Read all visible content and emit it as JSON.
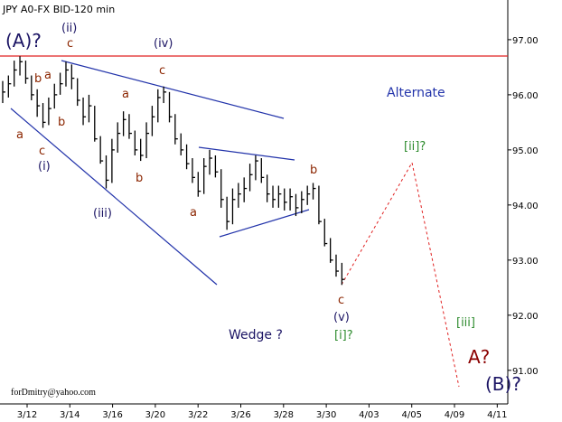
{
  "chart_data": {
    "type": "ohlc",
    "title": "JPY A0-FX BID-120 min",
    "color": "#000000",
    "xlim": [
      -0.634,
      11.247
    ],
    "ylim": [
      90.39,
      97.72
    ],
    "xticks": [
      {
        "value": 0,
        "label": "3/12"
      },
      {
        "value": 1,
        "label": "3/14"
      },
      {
        "value": 2,
        "label": "3/16"
      },
      {
        "value": 3,
        "label": "3/20"
      },
      {
        "value": 4,
        "label": "3/22"
      },
      {
        "value": 5,
        "label": "3/26"
      },
      {
        "value": 6,
        "label": "3/28"
      },
      {
        "value": 7,
        "label": "3/30"
      },
      {
        "value": 8,
        "label": "4/03"
      },
      {
        "value": 9,
        "label": "4/05"
      },
      {
        "value": 10,
        "label": "4/09"
      },
      {
        "value": 11,
        "label": "4/11"
      }
    ],
    "yticks": [
      {
        "value": 91,
        "label": "91.00"
      },
      {
        "value": 92,
        "label": "92.00"
      },
      {
        "value": 93,
        "label": "93.00"
      },
      {
        "value": 94,
        "label": "94.00"
      },
      {
        "value": 95,
        "label": "95.00"
      },
      {
        "value": 96,
        "label": "96.00"
      },
      {
        "value": 97,
        "label": "97.00"
      }
    ],
    "x": [
      -0.571,
      -0.437,
      -0.302,
      -0.168,
      -0.033,
      0.102,
      0.236,
      0.371,
      0.505,
      0.64,
      0.774,
      0.909,
      1.043,
      1.178,
      1.312,
      1.447,
      1.581,
      1.716,
      1.85,
      1.985,
      2.119,
      2.254,
      2.388,
      2.523,
      2.657,
      2.792,
      2.926,
      3.061,
      3.195,
      3.33,
      3.464,
      3.599,
      3.733,
      3.868,
      4.002,
      4.137,
      4.271,
      4.406,
      4.54,
      4.675,
      4.809,
      4.944,
      5.078,
      5.213,
      5.347,
      5.482,
      5.616,
      5.751,
      5.885,
      6.02,
      6.154,
      6.289,
      6.423,
      6.558,
      6.692,
      6.827,
      6.961,
      7.096,
      7.23,
      7.365
    ],
    "high": [
      96.25,
      96.35,
      96.62,
      96.7,
      96.62,
      96.35,
      96.1,
      95.85,
      95.95,
      96.2,
      96.4,
      96.6,
      96.55,
      96.3,
      95.95,
      96.0,
      95.8,
      95.25,
      94.9,
      95.2,
      95.5,
      95.7,
      95.65,
      95.35,
      95.2,
      95.5,
      95.8,
      96.1,
      96.15,
      96.05,
      95.65,
      95.3,
      95.1,
      94.85,
      94.6,
      94.85,
      95.0,
      94.9,
      94.65,
      94.15,
      94.3,
      94.4,
      94.5,
      94.75,
      94.9,
      94.85,
      94.55,
      94.35,
      94.35,
      94.3,
      94.3,
      94.2,
      94.25,
      94.35,
      94.4,
      94.35,
      93.75,
      93.4,
      93.1,
      92.95
    ],
    "low": [
      95.85,
      95.95,
      96.15,
      96.35,
      96.2,
      95.9,
      95.6,
      95.4,
      95.45,
      95.75,
      96.0,
      96.15,
      96.1,
      95.8,
      95.45,
      95.5,
      95.15,
      94.75,
      94.3,
      94.4,
      94.95,
      95.25,
      95.2,
      94.9,
      94.8,
      94.85,
      95.25,
      95.5,
      95.85,
      95.5,
      95.1,
      94.9,
      94.65,
      94.4,
      94.15,
      94.2,
      94.55,
      94.5,
      93.95,
      93.55,
      93.65,
      93.95,
      94.05,
      94.25,
      94.45,
      94.4,
      94.05,
      93.95,
      93.95,
      93.9,
      93.9,
      93.8,
      93.85,
      94.0,
      94.1,
      93.65,
      93.25,
      92.95,
      92.7,
      92.55
    ],
    "close": [
      96.05,
      96.2,
      96.45,
      96.6,
      96.3,
      96.0,
      95.8,
      95.5,
      95.75,
      96.0,
      96.2,
      96.45,
      96.3,
      95.9,
      95.6,
      95.8,
      95.2,
      94.8,
      94.45,
      95.0,
      95.3,
      95.55,
      95.3,
      95.0,
      94.9,
      95.3,
      95.6,
      95.95,
      96.05,
      95.6,
      95.2,
      95.0,
      94.75,
      94.5,
      94.25,
      94.7,
      94.85,
      94.6,
      94.1,
      93.7,
      94.1,
      94.2,
      94.3,
      94.55,
      94.8,
      94.5,
      94.2,
      94.1,
      94.2,
      94.05,
      94.15,
      93.95,
      94.1,
      94.2,
      94.3,
      93.7,
      93.3,
      93.0,
      92.8,
      92.65
    ],
    "annotations": [
      {
        "text": "(A)?",
        "color": "#1b1464"
      },
      {
        "text": "(ii)",
        "color": "#1b1464"
      },
      {
        "text": "c",
        "color": "#8b2500"
      },
      {
        "text": "(iv)",
        "color": "#1b1464"
      },
      {
        "text": "c",
        "color": "#8b2500"
      },
      {
        "text": "b",
        "color": "#8b2500"
      },
      {
        "text": "a",
        "color": "#8b2500"
      },
      {
        "text": "a",
        "color": "#8b2500"
      },
      {
        "text": "c",
        "color": "#8b2500"
      },
      {
        "text": "(i)",
        "color": "#1b1464"
      },
      {
        "text": "b",
        "color": "#8b2500"
      },
      {
        "text": "a",
        "color": "#8b2500"
      },
      {
        "text": "b",
        "color": "#8b2500"
      },
      {
        "text": "(iii)",
        "color": "#1b1464"
      },
      {
        "text": "a",
        "color": "#8b2500"
      },
      {
        "text": "b",
        "color": "#8b2500"
      },
      {
        "text": "c",
        "color": "#8b2500"
      },
      {
        "text": "(v)",
        "color": "#1b1464"
      },
      {
        "text": "[i]?",
        "color": "#2e8b2e"
      },
      {
        "text": "[ii]?",
        "color": "#2e8b2e"
      },
      {
        "text": "[iii]",
        "color": "#2e8b2e"
      },
      {
        "text": "A?",
        "color": "#8b0000"
      },
      {
        "text": "(B)?",
        "color": "#1b1464"
      },
      {
        "text": "Alternate",
        "color": "#2233aa"
      },
      {
        "text": "Wedge ?",
        "color": "#1b1464"
      },
      {
        "text": "forDmitry@yahoo.com",
        "color": "#000000"
      }
    ]
  }
}
